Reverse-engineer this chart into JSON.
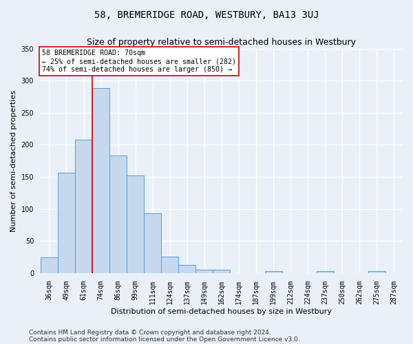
{
  "title": "58, BREMERIDGE ROAD, WESTBURY, BA13 3UJ",
  "subtitle": "Size of property relative to semi-detached houses in Westbury",
  "xlabel": "Distribution of semi-detached houses by size in Westbury",
  "ylabel": "Number of semi-detached properties",
  "categories": [
    "36sqm",
    "49sqm",
    "61sqm",
    "74sqm",
    "86sqm",
    "99sqm",
    "111sqm",
    "124sqm",
    "137sqm",
    "149sqm",
    "162sqm",
    "174sqm",
    "187sqm",
    "199sqm",
    "212sqm",
    "224sqm",
    "237sqm",
    "250sqm",
    "262sqm",
    "275sqm",
    "287sqm"
  ],
  "values": [
    25,
    157,
    208,
    288,
    183,
    152,
    93,
    26,
    13,
    5,
    5,
    0,
    0,
    3,
    0,
    0,
    3,
    0,
    0,
    3,
    0
  ],
  "bar_color": "#c5d8ed",
  "bar_edge_color": "#5b9bd5",
  "vline_x": 2.5,
  "vline_color": "#cc0000",
  "annotation_title": "58 BREMERIDGE ROAD: 70sqm",
  "annotation_line1": "← 25% of semi-detached houses are smaller (282)",
  "annotation_line2": "74% of semi-detached houses are larger (850) →",
  "annotation_box_color": "#ffffff",
  "annotation_box_edge_color": "#cc0000",
  "ylim": [
    0,
    350
  ],
  "yticks": [
    0,
    50,
    100,
    150,
    200,
    250,
    300,
    350
  ],
  "footer1": "Contains HM Land Registry data © Crown copyright and database right 2024.",
  "footer2": "Contains public sector information licensed under the Open Government Licence v3.0.",
  "bg_color": "#eaf0f8",
  "plot_bg_color": "#eaf0f8",
  "grid_color": "#ffffff",
  "title_fontsize": 10,
  "subtitle_fontsize": 9,
  "label_fontsize": 8,
  "tick_fontsize": 7,
  "footer_fontsize": 6.5
}
